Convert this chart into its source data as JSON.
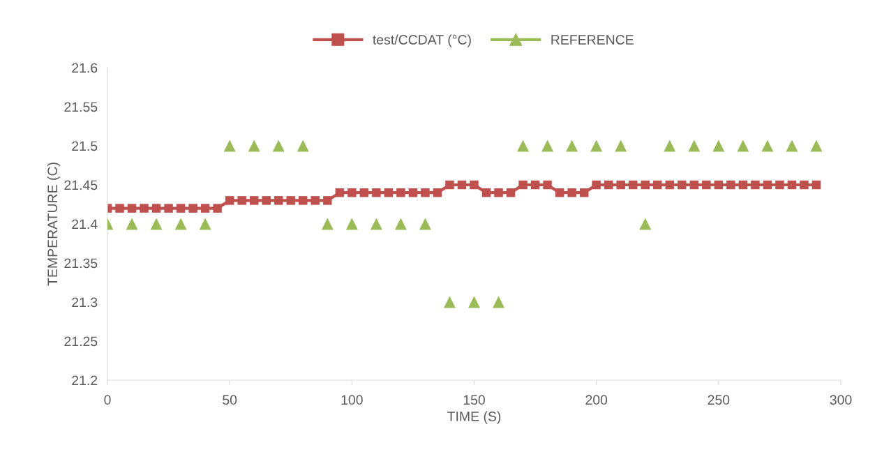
{
  "chart_data": {
    "type": "line",
    "xlabel": "TIME (S)",
    "ylabel": "TEMPERATURE (C)",
    "xlim": [
      0,
      300
    ],
    "xticks": [
      0,
      50,
      100,
      150,
      200,
      250,
      300
    ],
    "ylim": [
      21.2,
      21.6
    ],
    "yticks": [
      21.2,
      21.25,
      21.3,
      21.35,
      21.4,
      21.45,
      21.5,
      21.55,
      21.6
    ],
    "grid": false,
    "legend": "top",
    "series": [
      {
        "name": "test/CCDAT (°C)",
        "marker": "square",
        "color": "#c0504d",
        "x": [
          0,
          5,
          10,
          15,
          20,
          25,
          30,
          35,
          40,
          45,
          50,
          55,
          60,
          65,
          70,
          75,
          80,
          85,
          90,
          95,
          100,
          105,
          110,
          115,
          120,
          125,
          130,
          135,
          140,
          145,
          150,
          155,
          160,
          165,
          170,
          175,
          180,
          185,
          190,
          195,
          200,
          205,
          210,
          215,
          220,
          225,
          230,
          235,
          240,
          245,
          250,
          255,
          260,
          265,
          270,
          275,
          280,
          285,
          290
        ],
        "values": [
          21.42,
          21.42,
          21.42,
          21.42,
          21.42,
          21.42,
          21.42,
          21.42,
          21.42,
          21.42,
          21.43,
          21.43,
          21.43,
          21.43,
          21.43,
          21.43,
          21.43,
          21.43,
          21.43,
          21.44,
          21.44,
          21.44,
          21.44,
          21.44,
          21.44,
          21.44,
          21.44,
          21.44,
          21.45,
          21.45,
          21.45,
          21.44,
          21.44,
          21.44,
          21.45,
          21.45,
          21.45,
          21.44,
          21.44,
          21.44,
          21.45,
          21.45,
          21.45,
          21.45,
          21.45,
          21.45,
          21.45,
          21.45,
          21.45,
          21.45,
          21.45,
          21.45,
          21.45,
          21.45,
          21.45,
          21.45,
          21.45,
          21.45,
          21.45
        ]
      },
      {
        "name": "REFERENCE",
        "type": "scatter",
        "marker": "triangle",
        "color": "#9bbb59",
        "x": [
          0,
          10,
          20,
          30,
          40,
          50,
          60,
          70,
          80,
          90,
          100,
          110,
          120,
          130,
          140,
          150,
          160,
          170,
          180,
          190,
          200,
          210,
          220,
          230,
          240,
          250,
          260,
          270,
          280,
          290
        ],
        "values": [
          21.4,
          21.4,
          21.4,
          21.4,
          21.4,
          21.5,
          21.5,
          21.5,
          21.5,
          21.4,
          21.4,
          21.4,
          21.4,
          21.4,
          21.3,
          21.3,
          21.3,
          21.5,
          21.5,
          21.5,
          21.5,
          21.5,
          21.4,
          21.5,
          21.5,
          21.5,
          21.5,
          21.5,
          21.5,
          21.5
        ]
      }
    ]
  }
}
